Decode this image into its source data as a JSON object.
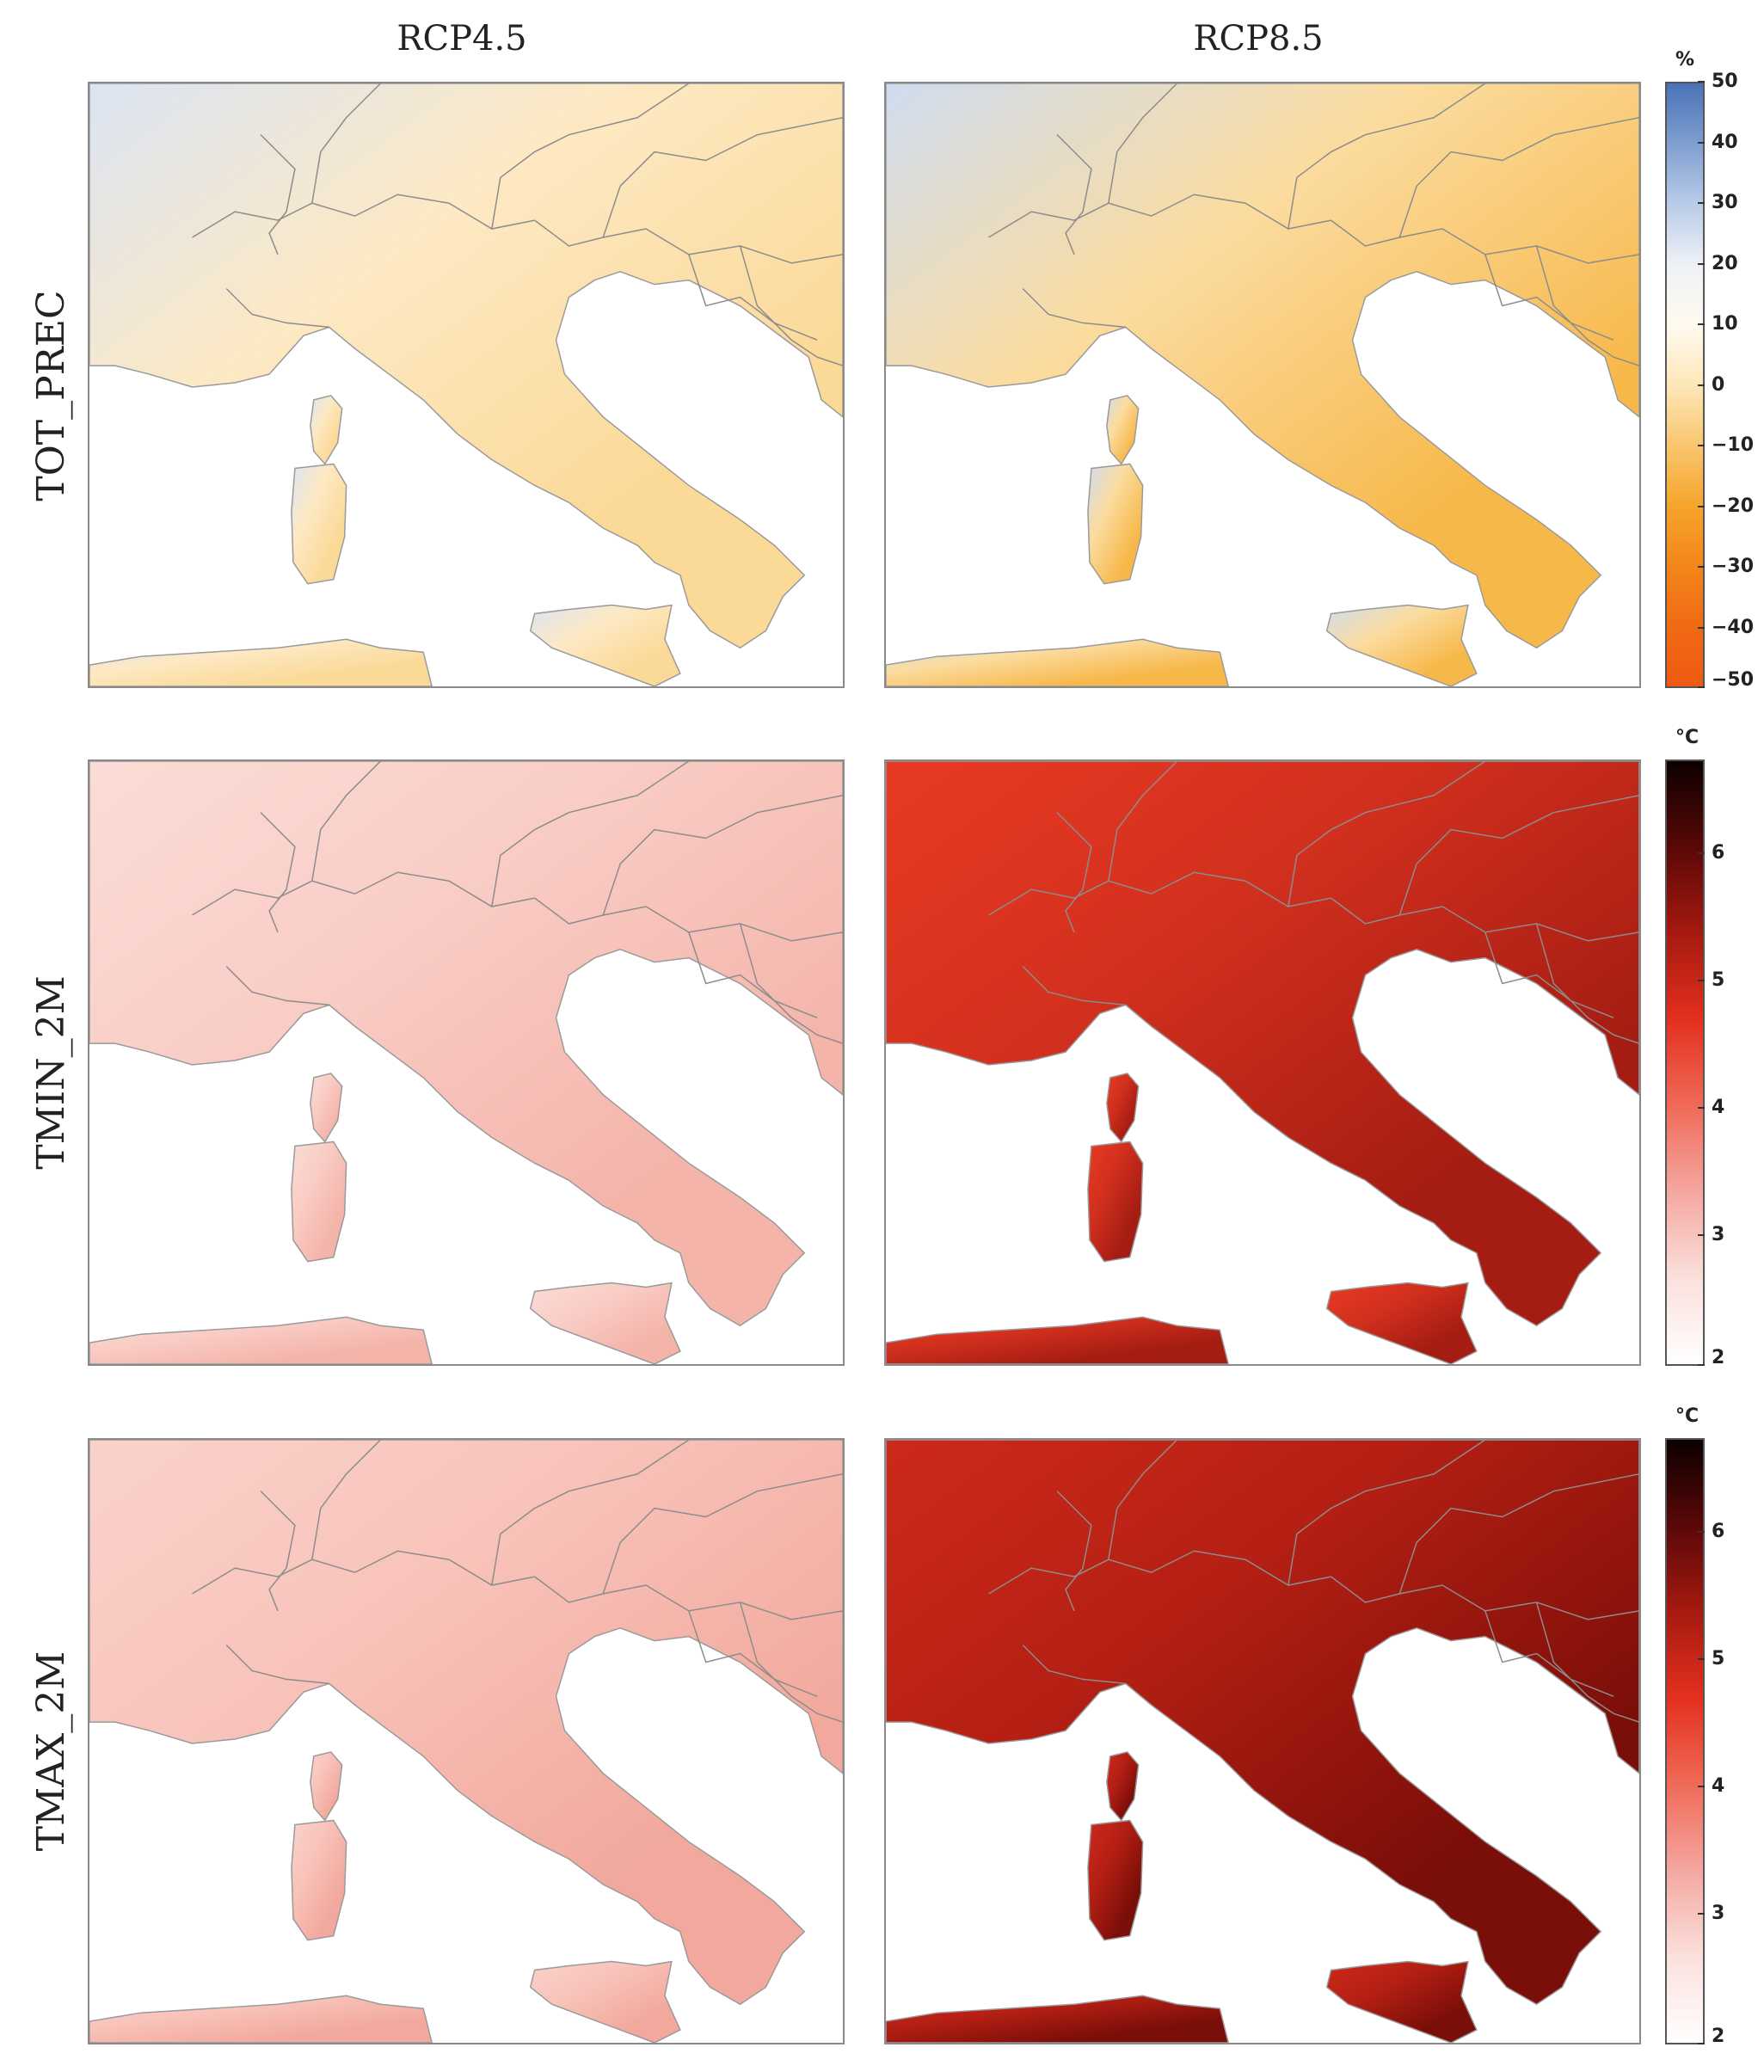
{
  "columns": [
    "RCP4.5",
    "RCP8.5"
  ],
  "rows": [
    {
      "label": "TOT_PREC",
      "colorbar": {
        "unit": "%",
        "ticks": [
          "50",
          "40",
          "30",
          "20",
          "10",
          "0",
          "−10",
          "−20",
          "−30",
          "−40",
          "−50"
        ],
        "gradient": [
          "#4a72b8",
          "#7f9fd0",
          "#b9cbe8",
          "#eef1f7",
          "#fffaf0",
          "#fde7b8",
          "#f9c670",
          "#f6a52c",
          "#f3861a",
          "#f06a14",
          "#ee5a12"
        ]
      },
      "panels": [
        {
          "scenario": "RCP4.5",
          "land": "#fde9c4",
          "accent": "#fbd996",
          "cool": "#dbe4f3"
        },
        {
          "scenario": "RCP8.5",
          "land": "#fbdca0",
          "accent": "#f7b84a",
          "cool": "#cfdcf0"
        }
      ]
    },
    {
      "label": "TMIN_2M",
      "colorbar": {
        "unit": "°C",
        "ticks": [
          "6",
          "5",
          "4",
          "3",
          "2"
        ],
        "gradient": [
          "#0d0000",
          "#5a0808",
          "#a61a10",
          "#e4301e",
          "#f06a58",
          "#f4a7a0",
          "#fbe0dc",
          "#ffffff"
        ]
      },
      "panels": [
        {
          "scenario": "RCP4.5",
          "land": "#f9cdc6",
          "accent": "#f4b4aa",
          "cool": "#fbdcd6"
        },
        {
          "scenario": "RCP8.5",
          "land": "#d2301e",
          "accent": "#a41c12",
          "cool": "#e83a22"
        }
      ]
    },
    {
      "label": "TMAX_2M",
      "colorbar": {
        "unit": "°C",
        "ticks": [
          "6",
          "5",
          "4",
          "3",
          "2"
        ],
        "gradient": [
          "#0d0000",
          "#5a0808",
          "#a61a10",
          "#e4301e",
          "#f06a58",
          "#f4a7a0",
          "#fbe0dc",
          "#ffffff"
        ]
      },
      "panels": [
        {
          "scenario": "RCP4.5",
          "land": "#f8c3ba",
          "accent": "#f2a89c",
          "cool": "#fad2cb"
        },
        {
          "scenario": "RCP8.5",
          "land": "#b51f14",
          "accent": "#7a0e08",
          "cool": "#cc2a1a"
        }
      ]
    }
  ]
}
